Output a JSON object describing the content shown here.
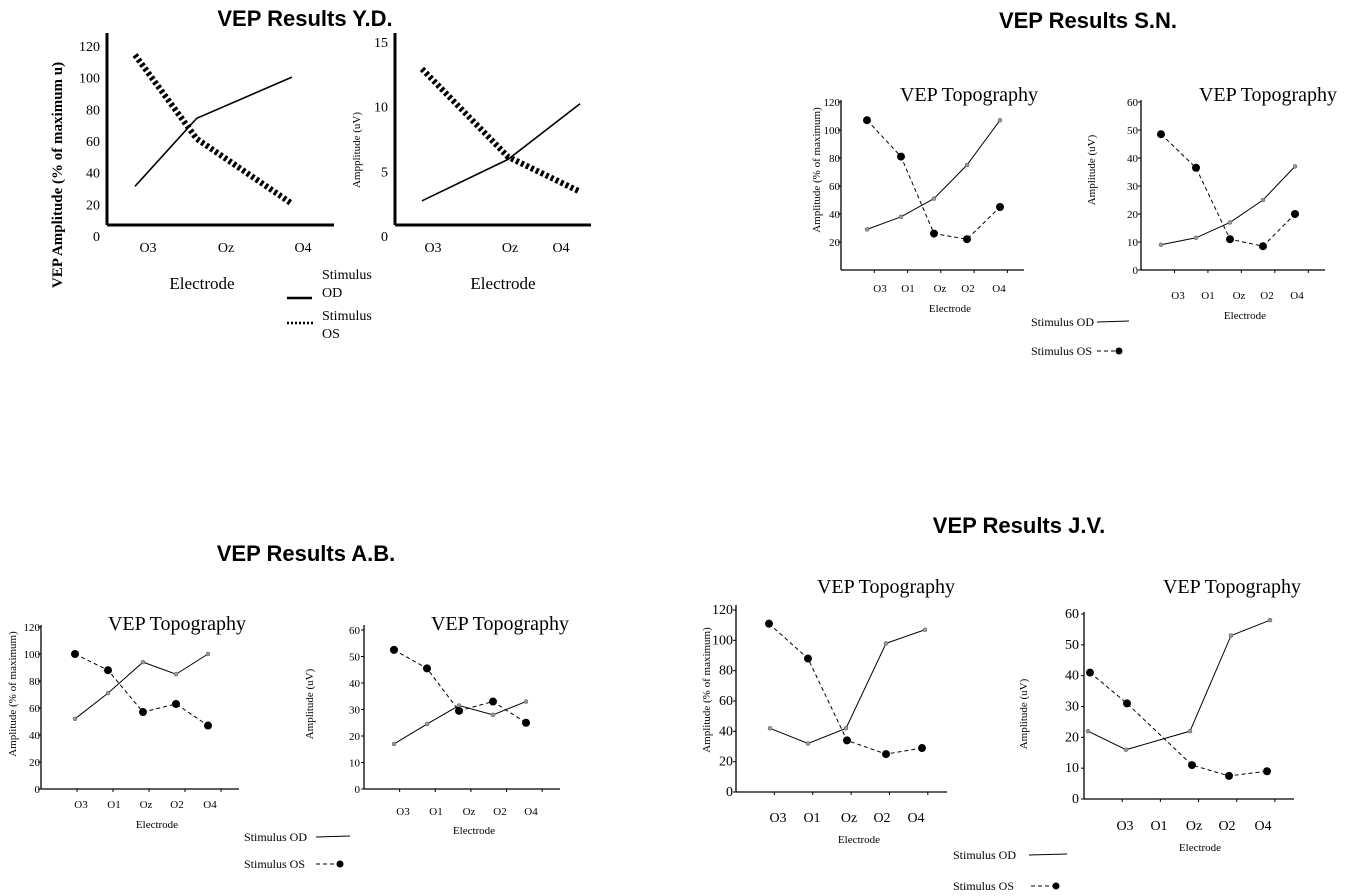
{
  "titles": {
    "yd": "VEP Results Y.D.",
    "sn": "VEP Results S.N.",
    "ab": "VEP Results A.B.",
    "jv": "VEP Results J.V."
  },
  "legends": {
    "yd": {
      "od_line1": "Stimulus",
      "od_line2": "OD",
      "os_line1": "Stimulus",
      "os_line2": "OS"
    },
    "sn": {
      "od": "Stimulus OD",
      "os": "Stimulus OS"
    },
    "ab": {
      "od": "Stimulus OD",
      "os": "Stimulus OS"
    },
    "jv": {
      "od": "Stimulus OD",
      "os": "Stimulus OS"
    }
  },
  "chart_data": [
    {
      "id": "yd-percent",
      "type": "line",
      "title": "",
      "xlabel": "Electrode",
      "ylabel": "VEP Amplitude (% of maximum u)",
      "categories": [
        "O3",
        "Oz",
        "O4"
      ],
      "x": [
        0,
        1,
        2
      ],
      "yticks": [
        0,
        20,
        40,
        60,
        80,
        100,
        120
      ],
      "ylim": [
        0,
        120
      ],
      "series": [
        {
          "name": "Stimulus OD",
          "x": [
            0,
            0.95,
            2
          ],
          "values": [
            32,
            75,
            101
          ]
        },
        {
          "name": "Stimulus OS",
          "x": [
            0,
            0.95,
            2
          ],
          "values": [
            115,
            62,
            21
          ]
        }
      ]
    },
    {
      "id": "yd-uv",
      "type": "line",
      "title": "",
      "xlabel": "Electrode",
      "ylabel": "Ampplitude (uV)",
      "categories": [
        "O3",
        "Oz",
        "O4"
      ],
      "x": [
        0,
        1,
        2
      ],
      "yticks": [
        0,
        5,
        10,
        15
      ],
      "ylim": [
        0,
        15
      ],
      "series": [
        {
          "name": "Stimulus OD",
          "x": [
            0,
            1,
            2
          ],
          "values": [
            2.8,
            6.0,
            10.3
          ]
        },
        {
          "name": "Stimulus OS",
          "x": [
            0,
            1,
            2
          ],
          "values": [
            13.0,
            6.2,
            3.5
          ]
        }
      ]
    },
    {
      "id": "sn-percent",
      "type": "line",
      "title": "VEP Topography",
      "xlabel": "Electrode",
      "ylabel": "Amplitude (% of maximum)",
      "categories": [
        "O3",
        "O1",
        "Oz",
        "O2",
        "O4"
      ],
      "yticks": [
        20,
        40,
        60,
        80,
        100,
        120
      ],
      "ylim": [
        0,
        120
      ],
      "series": [
        {
          "name": "Stimulus OD",
          "values": [
            29,
            38,
            51,
            75,
            107
          ]
        },
        {
          "name": "Stimulus OS",
          "values": [
            107,
            81,
            26,
            22,
            45
          ]
        }
      ]
    },
    {
      "id": "sn-uv",
      "type": "line",
      "title": "VEP Topography",
      "xlabel": "Electrode",
      "ylabel": "Amplitude (uV)",
      "categories": [
        "O3",
        "O1",
        "Oz",
        "O2",
        "O4"
      ],
      "yticks": [
        0,
        10,
        20,
        30,
        40,
        50,
        60
      ],
      "ylim": [
        0,
        60
      ],
      "series": [
        {
          "name": "Stimulus OD",
          "values": [
            9,
            11.5,
            17,
            25,
            37
          ]
        },
        {
          "name": "Stimulus OS",
          "values": [
            48.5,
            36.5,
            11,
            8.5,
            20
          ]
        }
      ]
    },
    {
      "id": "ab-percent",
      "type": "line",
      "title": "VEP Topography",
      "xlabel": "Electrode",
      "ylabel": "Amplitude (% of maximum)",
      "categories": [
        "O3",
        "O1",
        "Oz",
        "O2",
        "O4"
      ],
      "yticks": [
        0,
        20,
        40,
        60,
        80,
        100,
        120
      ],
      "ylim": [
        0,
        120
      ],
      "series": [
        {
          "name": "Stimulus OD",
          "values": [
            52,
            71,
            94,
            85,
            100
          ]
        },
        {
          "name": "Stimulus OS",
          "values": [
            100,
            88,
            57,
            63,
            47
          ]
        }
      ]
    },
    {
      "id": "ab-uv",
      "type": "line",
      "title": "VEP Topography",
      "xlabel": "Electrode",
      "ylabel": "Amplitude (uV)",
      "categories": [
        "O3",
        "O1",
        "Oz",
        "O2",
        "O4"
      ],
      "yticks": [
        0,
        10,
        20,
        30,
        40,
        50,
        60
      ],
      "ylim": [
        0,
        60
      ],
      "series": [
        {
          "name": "Stimulus OD",
          "values": [
            17,
            24.5,
            31.5,
            28,
            33
          ]
        },
        {
          "name": "Stimulus OS",
          "values": [
            52.5,
            45.5,
            29.5,
            33,
            25
          ]
        }
      ]
    },
    {
      "id": "jv-percent",
      "type": "line",
      "title": "VEP Topography",
      "xlabel": "Electrode",
      "ylabel": "Amplitude (% of maximum)",
      "categories": [
        "O3",
        "O1",
        "Oz",
        "O2",
        "O4"
      ],
      "yticks": [
        0,
        20,
        40,
        60,
        80,
        100,
        120
      ],
      "ylim": [
        0,
        120
      ],
      "series": [
        {
          "name": "Stimulus OD",
          "values": [
            42,
            32,
            42,
            98,
            107
          ]
        },
        {
          "name": "Stimulus OS",
          "values": [
            111,
            88,
            34,
            25,
            29
          ]
        }
      ]
    },
    {
      "id": "jv-uv",
      "type": "line",
      "title": "VEP Topography",
      "xlabel": "Electrode",
      "ylabel": "Amplitude (uV)",
      "categories": [
        "O3",
        "O1",
        "Oz",
        "O2",
        "O4"
      ],
      "yticks": [
        0,
        10,
        20,
        30,
        40,
        50,
        60
      ],
      "ylim": [
        0,
        60
      ],
      "series": [
        {
          "name": "Stimulus OD",
          "values": [
            22,
            16,
            22,
            53,
            58
          ]
        },
        {
          "name": "Stimulus OS",
          "values": [
            41,
            31,
            11,
            7.5,
            9
          ]
        }
      ]
    }
  ]
}
